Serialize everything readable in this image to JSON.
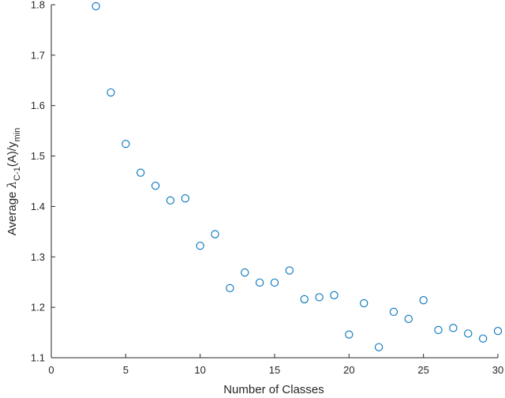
{
  "chart_data": {
    "type": "scatter",
    "title": "",
    "xlabel": "Number of Classes",
    "ylabel": {
      "prefix": "Average ",
      "symbol": "λ",
      "sub": "C-1",
      "mid": "(A)/y",
      "sub2": "min"
    },
    "xlim": [
      0,
      30
    ],
    "ylim": [
      1.1,
      1.8
    ],
    "xticks": [
      0,
      5,
      10,
      15,
      20,
      25,
      30
    ],
    "yticks": [
      1.1,
      1.2,
      1.3,
      1.4,
      1.5,
      1.6,
      1.7,
      1.8
    ],
    "xtick_labels": [
      "0",
      "5",
      "10",
      "15",
      "20",
      "25",
      "30"
    ],
    "ytick_labels": [
      "1.1",
      "1.2",
      "1.3",
      "1.4",
      "1.5",
      "1.6",
      "1.7",
      "1.8"
    ],
    "grid": false,
    "marker": "open-circle",
    "marker_color": "#0072bd",
    "axis_color": "#262626",
    "x": [
      3,
      4,
      5,
      6,
      7,
      8,
      9,
      10,
      11,
      12,
      13,
      14,
      15,
      16,
      17,
      18,
      19,
      20,
      21,
      22,
      23,
      24,
      25,
      26,
      27,
      28,
      29,
      30
    ],
    "y": [
      1.797,
      1.626,
      1.524,
      1.467,
      1.441,
      1.412,
      1.416,
      1.322,
      1.345,
      1.238,
      1.269,
      1.249,
      1.249,
      1.273,
      1.216,
      1.22,
      1.224,
      1.146,
      1.208,
      1.121,
      1.191,
      1.177,
      1.214,
      1.155,
      1.159,
      1.148,
      1.138,
      1.153
    ]
  }
}
